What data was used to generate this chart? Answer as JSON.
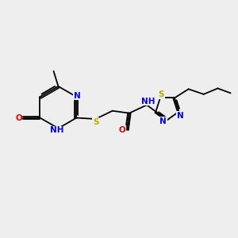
{
  "bg_color": "#eeeeee",
  "bond_color": "#000000",
  "bond_lw": 1.3,
  "atom_colors": {
    "N": "#0000ee",
    "O": "#dd0000",
    "S": "#bbaa00",
    "C": "#000000",
    "H": "#777777"
  },
  "font_size": 7.5,
  "figsize": [
    3.0,
    3.0
  ],
  "dpi": 100
}
